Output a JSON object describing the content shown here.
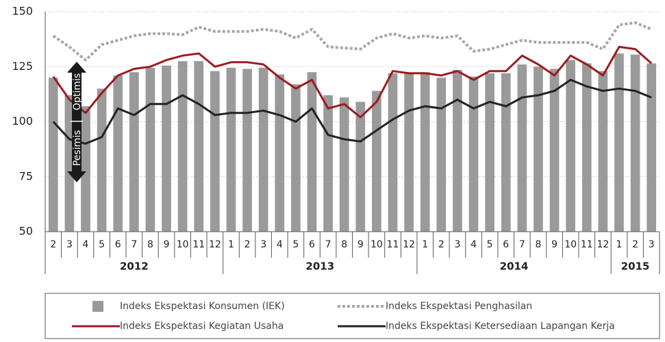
{
  "chart_data": {
    "type": "combo",
    "categories": [
      "2",
      "3",
      "4",
      "5",
      "6",
      "7",
      "8",
      "9",
      "10",
      "11",
      "12",
      "1",
      "2",
      "3",
      "4",
      "5",
      "6",
      "7",
      "8",
      "9",
      "10",
      "11",
      "12",
      "1",
      "2",
      "3",
      "4",
      "5",
      "6",
      "7",
      "8",
      "9",
      "10",
      "11",
      "12",
      "1",
      "2",
      "3"
    ],
    "years": [
      "2012",
      "2013",
      "2014",
      "2015"
    ],
    "ylim": [
      50,
      150
    ],
    "yticks": [
      50,
      75,
      100,
      125,
      150
    ],
    "grid": true,
    "annotation": {
      "upper": "Optimis",
      "lower": "Pesimis"
    },
    "series": [
      {
        "name": "Indeks Ekspektasi Konsumen (IEK)",
        "type": "bar",
        "color": "#9a9a9a",
        "values": [
          120,
          112,
          107,
          115,
          121,
          122.5,
          124.5,
          125.5,
          127.5,
          127.5,
          123,
          124.5,
          124,
          124.5,
          121.5,
          117,
          122.5,
          112,
          111,
          109,
          114,
          122,
          122,
          122.5,
          120,
          123.5,
          120.5,
          122,
          122,
          126,
          125,
          124,
          128,
          126.5,
          123,
          131,
          130.5,
          126.5
        ]
      },
      {
        "name": "Indeks Ekspektasi Penghasilan",
        "type": "line",
        "style": "dotted",
        "color": "#a6a6a6",
        "values": [
          139,
          134,
          128,
          135,
          137,
          139,
          140,
          140,
          139.5,
          143,
          141,
          141,
          141,
          142,
          141,
          138,
          142,
          134,
          133.5,
          133,
          138,
          140,
          138,
          139,
          138,
          139,
          132,
          133,
          135,
          137,
          136,
          136,
          136,
          136,
          133,
          144,
          145,
          142
        ]
      },
      {
        "name": "Indeks Ekspektasi Kegiatan Usaha",
        "type": "line",
        "style": "solid",
        "color": "#9b1b1f",
        "values": [
          120.5,
          110,
          104,
          113,
          121,
          124,
          125,
          128,
          130,
          131,
          125,
          127,
          127,
          126,
          120,
          115,
          119,
          106,
          108,
          102,
          109,
          123,
          122,
          122,
          121,
          123,
          119,
          123,
          123,
          130,
          126,
          121,
          130,
          126,
          121,
          134,
          133,
          126.5
        ]
      },
      {
        "name": "Indeks Ekspektasi Ketersediaan Lapangan Kerja",
        "type": "line",
        "style": "solid",
        "color": "#222222",
        "values": [
          100,
          92,
          90,
          93,
          106,
          103,
          108,
          108,
          112,
          108,
          103,
          104,
          104,
          105,
          103,
          100,
          106,
          94,
          92,
          91,
          96,
          101,
          105,
          107,
          106,
          110,
          106,
          109,
          107,
          111,
          112,
          114,
          119,
          116,
          114,
          115,
          114,
          111
        ]
      }
    ]
  }
}
